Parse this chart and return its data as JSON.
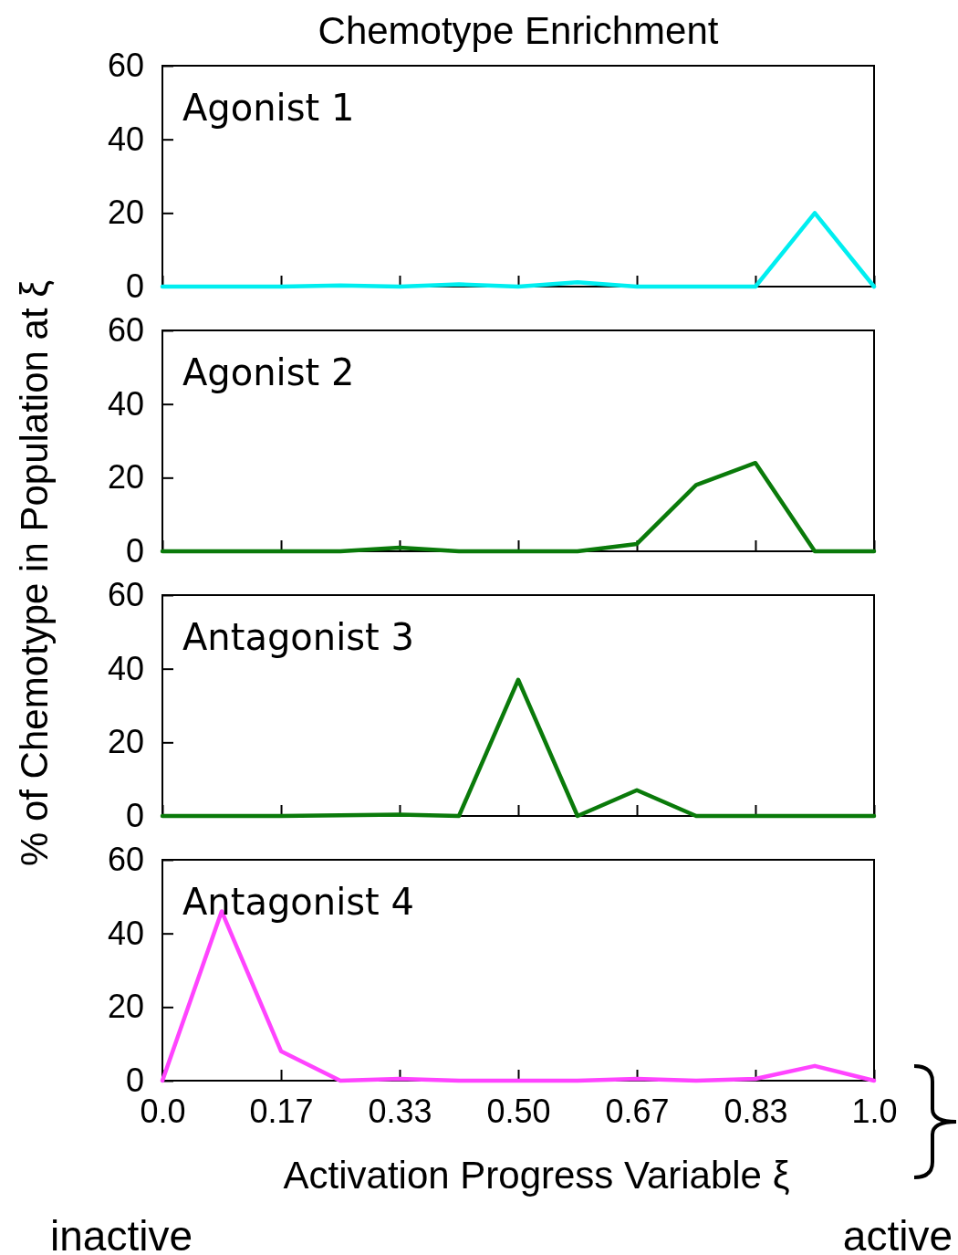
{
  "chart_data": [
    {
      "type": "line",
      "title": "Chemotype Enrichment",
      "subtitle": "Agonist 1",
      "ylabel": "% of Chemotype in Population at ξ",
      "x": [
        0,
        0.0833,
        0.1667,
        0.25,
        0.3333,
        0.4167,
        0.5,
        0.5833,
        0.6667,
        0.75,
        0.8333,
        0.9167,
        1
      ],
      "xlim": [
        0,
        1
      ],
      "xticks": [
        {
          "value": 0,
          "label": null
        },
        {
          "value": 0.1667,
          "label": null
        },
        {
          "value": 0.3333,
          "label": null
        },
        {
          "value": 0.5,
          "label": null
        },
        {
          "value": 0.6667,
          "label": null
        },
        {
          "value": 0.8333,
          "label": null
        },
        {
          "value": 1,
          "label": null
        }
      ],
      "ylim": [
        0,
        60
      ],
      "yticks": [
        0,
        20,
        40,
        60
      ],
      "tick_labels": "y",
      "series": [
        {
          "color": "#00eef0",
          "values": [
            0,
            0,
            0,
            0.3,
            0,
            0.6,
            0,
            1.2,
            0,
            0,
            0,
            20,
            0
          ]
        }
      ]
    },
    {
      "type": "line",
      "subtitle": "Agonist 2",
      "x": [
        0,
        0.0833,
        0.1667,
        0.25,
        0.3333,
        0.4167,
        0.5,
        0.5833,
        0.6667,
        0.75,
        0.8333,
        0.9167,
        1
      ],
      "xlim": [
        0,
        1
      ],
      "xticks": [
        {
          "value": 0,
          "label": null
        },
        {
          "value": 0.1667,
          "label": null
        },
        {
          "value": 0.3333,
          "label": null
        },
        {
          "value": 0.5,
          "label": null
        },
        {
          "value": 0.6667,
          "label": null
        },
        {
          "value": 0.8333,
          "label": null
        },
        {
          "value": 1,
          "label": null
        }
      ],
      "ylim": [
        0,
        60
      ],
      "yticks": [
        0,
        20,
        40,
        60
      ],
      "tick_labels": "y",
      "series": [
        {
          "color": "#0a7a0a",
          "values": [
            0,
            0,
            0,
            0,
            1,
            0,
            0,
            0,
            2,
            18,
            24,
            0,
            0
          ]
        }
      ]
    },
    {
      "type": "line",
      "subtitle": "Antagonist 3",
      "x": [
        0,
        0.0833,
        0.1667,
        0.25,
        0.3333,
        0.4167,
        0.5,
        0.5833,
        0.6667,
        0.75,
        0.8333,
        0.9167,
        1
      ],
      "xlim": [
        0,
        1
      ],
      "xticks": [
        {
          "value": 0,
          "label": null
        },
        {
          "value": 0.1667,
          "label": null
        },
        {
          "value": 0.3333,
          "label": null
        },
        {
          "value": 0.5,
          "label": null
        },
        {
          "value": 0.6667,
          "label": null
        },
        {
          "value": 0.8333,
          "label": null
        },
        {
          "value": 1,
          "label": null
        }
      ],
      "ylim": [
        0,
        60
      ],
      "yticks": [
        0,
        20,
        40,
        60
      ],
      "tick_labels": "y",
      "series": [
        {
          "color": "#0a7a0a",
          "values": [
            0,
            0,
            0,
            0.2,
            0.4,
            0,
            37,
            0,
            7,
            0,
            0,
            0,
            0
          ]
        }
      ]
    },
    {
      "type": "line",
      "subtitle": "Antagonist 4",
      "xlabel": "Activation Progress Variable ξ",
      "annotations": [
        "inactive",
        "active"
      ],
      "x": [
        0,
        0.0833,
        0.1667,
        0.25,
        0.3333,
        0.4167,
        0.5,
        0.5833,
        0.6667,
        0.75,
        0.8333,
        0.9167,
        1
      ],
      "xlim": [
        0,
        1
      ],
      "xticks": [
        {
          "value": 0,
          "label": "0.0"
        },
        {
          "value": 0.1667,
          "label": "0.17"
        },
        {
          "value": 0.3333,
          "label": "0.33"
        },
        {
          "value": 0.5,
          "label": "0.50"
        },
        {
          "value": 0.6667,
          "label": "0.67"
        },
        {
          "value": 0.8333,
          "label": "0.83"
        },
        {
          "value": 1,
          "label": "1.0"
        }
      ],
      "ylim": [
        0,
        60
      ],
      "yticks": [
        0,
        20,
        40,
        60
      ],
      "series": [
        {
          "color": "#ff44ff",
          "values": [
            0,
            46,
            8,
            0,
            0.5,
            0,
            0,
            0,
            0.5,
            0,
            0.5,
            4,
            0
          ]
        }
      ]
    }
  ]
}
